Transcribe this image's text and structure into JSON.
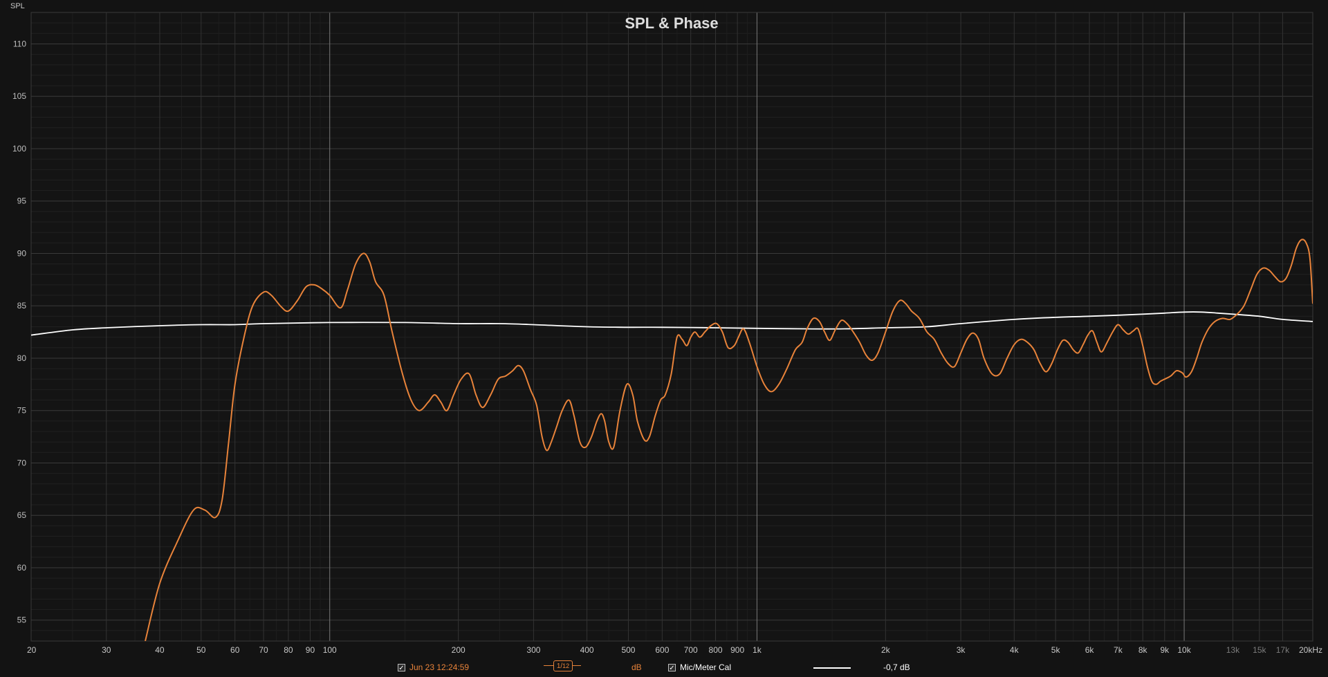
{
  "chart_data": {
    "type": "line",
    "title": "SPL & Phase",
    "ylabel": "SPL",
    "x_scale": "log",
    "xlim": [
      20,
      20000
    ],
    "ylim": [
      53,
      113
    ],
    "grid": true,
    "y_ticks": [
      55,
      60,
      65,
      70,
      75,
      80,
      85,
      90,
      95,
      100,
      105,
      110
    ],
    "x_ticks": [
      {
        "v": 20,
        "t": "20"
      },
      {
        "v": 30,
        "t": "30"
      },
      {
        "v": 40,
        "t": "40"
      },
      {
        "v": 50,
        "t": "50"
      },
      {
        "v": 60,
        "t": "60"
      },
      {
        "v": 70,
        "t": "70"
      },
      {
        "v": 80,
        "t": "80"
      },
      {
        "v": 90,
        "t": "90"
      },
      {
        "v": 100,
        "t": "100"
      },
      {
        "v": 200,
        "t": "200"
      },
      {
        "v": 300,
        "t": "300"
      },
      {
        "v": 400,
        "t": "400"
      },
      {
        "v": 500,
        "t": "500"
      },
      {
        "v": 600,
        "t": "600"
      },
      {
        "v": 700,
        "t": "700"
      },
      {
        "v": 800,
        "t": "800"
      },
      {
        "v": 900,
        "t": "900"
      },
      {
        "v": 1000,
        "t": "1k"
      },
      {
        "v": 2000,
        "t": "2k"
      },
      {
        "v": 3000,
        "t": "3k"
      },
      {
        "v": 4000,
        "t": "4k"
      },
      {
        "v": 5000,
        "t": "5k"
      },
      {
        "v": 6000,
        "t": "6k"
      },
      {
        "v": 7000,
        "t": "7k"
      },
      {
        "v": 8000,
        "t": "8k"
      },
      {
        "v": 9000,
        "t": "9k"
      },
      {
        "v": 10000,
        "t": "10k"
      },
      {
        "v": 13000,
        "t": "13k",
        "dim": true
      },
      {
        "v": 15000,
        "t": "15k",
        "dim": true
      },
      {
        "v": 17000,
        "t": "17k",
        "dim": true
      },
      {
        "v": 20000,
        "t": "20kHz"
      }
    ],
    "series": [
      {
        "name": "Jun 23 12:24:59",
        "color": "#e8833a",
        "points": [
          [
            37,
            53
          ],
          [
            40,
            58.5
          ],
          [
            44,
            62.5
          ],
          [
            48,
            65.5
          ],
          [
            51,
            65.5
          ],
          [
            54,
            64.8
          ],
          [
            56,
            66.5
          ],
          [
            58,
            72
          ],
          [
            60,
            77.5
          ],
          [
            63,
            82
          ],
          [
            66,
            85
          ],
          [
            70,
            86.3
          ],
          [
            73,
            86
          ],
          [
            77,
            84.9
          ],
          [
            80,
            84.5
          ],
          [
            84,
            85.5
          ],
          [
            88,
            86.8
          ],
          [
            92,
            87
          ],
          [
            96,
            86.6
          ],
          [
            100,
            86
          ],
          [
            106,
            84.8
          ],
          [
            110,
            86.5
          ],
          [
            115,
            89
          ],
          [
            120,
            90
          ],
          [
            124,
            89.2
          ],
          [
            128,
            87.3
          ],
          [
            134,
            86
          ],
          [
            140,
            82.5
          ],
          [
            148,
            78.5
          ],
          [
            155,
            76
          ],
          [
            162,
            75
          ],
          [
            170,
            75.8
          ],
          [
            176,
            76.5
          ],
          [
            182,
            75.8
          ],
          [
            188,
            75
          ],
          [
            195,
            76.5
          ],
          [
            203,
            78
          ],
          [
            212,
            78.5
          ],
          [
            220,
            76.5
          ],
          [
            228,
            75.3
          ],
          [
            238,
            76.5
          ],
          [
            248,
            78
          ],
          [
            258,
            78.3
          ],
          [
            268,
            78.8
          ],
          [
            276,
            79.3
          ],
          [
            284,
            78.8
          ],
          [
            295,
            77
          ],
          [
            305,
            75.5
          ],
          [
            314,
            72.5
          ],
          [
            322,
            71.2
          ],
          [
            330,
            72
          ],
          [
            340,
            73.5
          ],
          [
            350,
            75
          ],
          [
            363,
            76
          ],
          [
            373,
            74.5
          ],
          [
            385,
            72
          ],
          [
            397,
            71.5
          ],
          [
            410,
            72.5
          ],
          [
            422,
            74
          ],
          [
            432,
            74.7
          ],
          [
            440,
            74
          ],
          [
            450,
            72
          ],
          [
            462,
            71.5
          ],
          [
            478,
            75
          ],
          [
            496,
            77.5
          ],
          [
            512,
            76.5
          ],
          [
            525,
            74
          ],
          [
            545,
            72.2
          ],
          [
            560,
            72.5
          ],
          [
            578,
            74.5
          ],
          [
            595,
            76
          ],
          [
            610,
            76.5
          ],
          [
            630,
            78.5
          ],
          [
            650,
            82
          ],
          [
            668,
            81.8
          ],
          [
            685,
            81.2
          ],
          [
            700,
            82
          ],
          [
            716,
            82.5
          ],
          [
            735,
            82
          ],
          [
            755,
            82.5
          ],
          [
            780,
            83.1
          ],
          [
            805,
            83.3
          ],
          [
            830,
            82.5
          ],
          [
            856,
            81
          ],
          [
            885,
            81.2
          ],
          [
            905,
            82
          ],
          [
            930,
            82.8
          ],
          [
            960,
            81.5
          ],
          [
            1000,
            79.2
          ],
          [
            1040,
            77.5
          ],
          [
            1080,
            76.8
          ],
          [
            1125,
            77.5
          ],
          [
            1175,
            79
          ],
          [
            1230,
            80.8
          ],
          [
            1275,
            81.5
          ],
          [
            1310,
            82.8
          ],
          [
            1355,
            83.8
          ],
          [
            1400,
            83.5
          ],
          [
            1440,
            82.5
          ],
          [
            1480,
            81.7
          ],
          [
            1525,
            82.7
          ],
          [
            1575,
            83.6
          ],
          [
            1625,
            83.3
          ],
          [
            1680,
            82.5
          ],
          [
            1740,
            81.5
          ],
          [
            1800,
            80.3
          ],
          [
            1860,
            79.8
          ],
          [
            1920,
            80.5
          ],
          [
            2000,
            82.5
          ],
          [
            2080,
            84.5
          ],
          [
            2160,
            85.5
          ],
          [
            2230,
            85.2
          ],
          [
            2300,
            84.5
          ],
          [
            2400,
            83.8
          ],
          [
            2500,
            82.5
          ],
          [
            2600,
            81.8
          ],
          [
            2700,
            80.5
          ],
          [
            2800,
            79.5
          ],
          [
            2900,
            79.2
          ],
          [
            3000,
            80.5
          ],
          [
            3100,
            81.8
          ],
          [
            3200,
            82.4
          ],
          [
            3300,
            81.8
          ],
          [
            3400,
            80
          ],
          [
            3550,
            78.5
          ],
          [
            3700,
            78.5
          ],
          [
            3850,
            80
          ],
          [
            4000,
            81.3
          ],
          [
            4150,
            81.8
          ],
          [
            4300,
            81.5
          ],
          [
            4450,
            80.8
          ],
          [
            4600,
            79.5
          ],
          [
            4750,
            78.7
          ],
          [
            4900,
            79.5
          ],
          [
            5050,
            80.8
          ],
          [
            5200,
            81.7
          ],
          [
            5350,
            81.5
          ],
          [
            5500,
            80.8
          ],
          [
            5650,
            80.5
          ],
          [
            5800,
            81.3
          ],
          [
            5950,
            82.2
          ],
          [
            6100,
            82.6
          ],
          [
            6250,
            81.5
          ],
          [
            6400,
            80.6
          ],
          [
            6600,
            81.5
          ],
          [
            6800,
            82.5
          ],
          [
            7000,
            83.2
          ],
          [
            7200,
            82.7
          ],
          [
            7400,
            82.3
          ],
          [
            7600,
            82.6
          ],
          [
            7800,
            82.8
          ],
          [
            8000,
            81.2
          ],
          [
            8200,
            79.2
          ],
          [
            8400,
            77.8
          ],
          [
            8600,
            77.5
          ],
          [
            8800,
            77.8
          ],
          [
            9000,
            78
          ],
          [
            9300,
            78.3
          ],
          [
            9600,
            78.8
          ],
          [
            9900,
            78.6
          ],
          [
            10100,
            78.2
          ],
          [
            10400,
            78.7
          ],
          [
            10700,
            80
          ],
          [
            11000,
            81.5
          ],
          [
            11400,
            82.8
          ],
          [
            11800,
            83.5
          ],
          [
            12300,
            83.8
          ],
          [
            12800,
            83.7
          ],
          [
            13300,
            84.2
          ],
          [
            13800,
            85
          ],
          [
            14300,
            86.5
          ],
          [
            14800,
            88
          ],
          [
            15300,
            88.6
          ],
          [
            15800,
            88.4
          ],
          [
            16300,
            87.8
          ],
          [
            16800,
            87.3
          ],
          [
            17300,
            87.6
          ],
          [
            17800,
            88.8
          ],
          [
            18300,
            90.5
          ],
          [
            18800,
            91.3
          ],
          [
            19300,
            91
          ],
          [
            19700,
            89.5
          ],
          [
            20000,
            85.2
          ]
        ]
      },
      {
        "name": "Mic/Meter Cal",
        "color": "#ffffff",
        "points": [
          [
            20,
            82.2
          ],
          [
            25,
            82.7
          ],
          [
            30,
            82.9
          ],
          [
            40,
            83.1
          ],
          [
            50,
            83.2
          ],
          [
            60,
            83.2
          ],
          [
            70,
            83.3
          ],
          [
            100,
            83.4
          ],
          [
            150,
            83.4
          ],
          [
            200,
            83.3
          ],
          [
            250,
            83.3
          ],
          [
            300,
            83.2
          ],
          [
            400,
            83
          ],
          [
            500,
            82.95
          ],
          [
            600,
            82.95
          ],
          [
            800,
            82.9
          ],
          [
            1000,
            82.85
          ],
          [
            1300,
            82.8
          ],
          [
            1600,
            82.8
          ],
          [
            2000,
            82.9
          ],
          [
            2500,
            83
          ],
          [
            3000,
            83.3
          ],
          [
            4000,
            83.7
          ],
          [
            5000,
            83.9
          ],
          [
            6000,
            84
          ],
          [
            7000,
            84.1
          ],
          [
            8000,
            84.2
          ],
          [
            9000,
            84.3
          ],
          [
            10000,
            84.4
          ],
          [
            11000,
            84.4
          ],
          [
            12000,
            84.3
          ],
          [
            13000,
            84.2
          ],
          [
            15000,
            84
          ],
          [
            17000,
            83.7
          ],
          [
            20000,
            83.5
          ]
        ]
      }
    ]
  },
  "legend": {
    "series1_label": "Jun 23 12:24:59",
    "smoothing_num": "1",
    "smoothing_den": "12",
    "unit_label": "dB",
    "cal_label": "Mic/Meter Cal",
    "offset_label": "-0,7 dB",
    "check_mark": "✓"
  }
}
